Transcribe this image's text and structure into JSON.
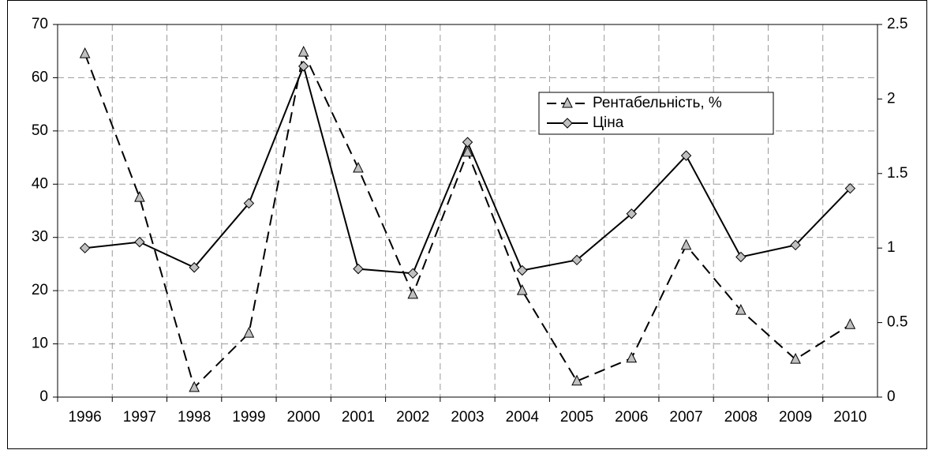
{
  "chart_data": {
    "type": "line",
    "categories": [
      "1996",
      "1997",
      "1998",
      "1999",
      "2000",
      "2001",
      "2002",
      "2003",
      "2004",
      "2005",
      "2006",
      "2007",
      "2008",
      "2009",
      "2010"
    ],
    "series": [
      {
        "name": "Рентабельність, %",
        "color": "#000000",
        "marker_color": "#c0c0c0",
        "marker": "triangle",
        "line_style": "dashed",
        "values": [
          64.5,
          37.5,
          1.8,
          12,
          64.8,
          43,
          19.3,
          46,
          20,
          3,
          7.3,
          28.5,
          16.3,
          7.1,
          13.6
        ]
      },
      {
        "name": "Ціна",
        "color": "#000000",
        "marker_color": "#c0c0c0",
        "marker": "diamond",
        "line_style": "solid",
        "axis": "y2",
        "values": [
          1.0,
          1.04,
          0.87,
          1.3,
          2.22,
          0.86,
          0.83,
          1.71,
          0.85,
          0.92,
          1.23,
          1.62,
          0.94,
          1.02,
          1.4
        ]
      }
    ],
    "ylim": [
      0,
      70
    ],
    "yticks": [
      0,
      10,
      20,
      30,
      40,
      50,
      60,
      70
    ],
    "y2lim": [
      0,
      2.5
    ],
    "y2ticks": [
      0,
      0.5,
      1,
      1.5,
      2,
      2.5
    ],
    "grid": true,
    "legend": "upper right"
  }
}
